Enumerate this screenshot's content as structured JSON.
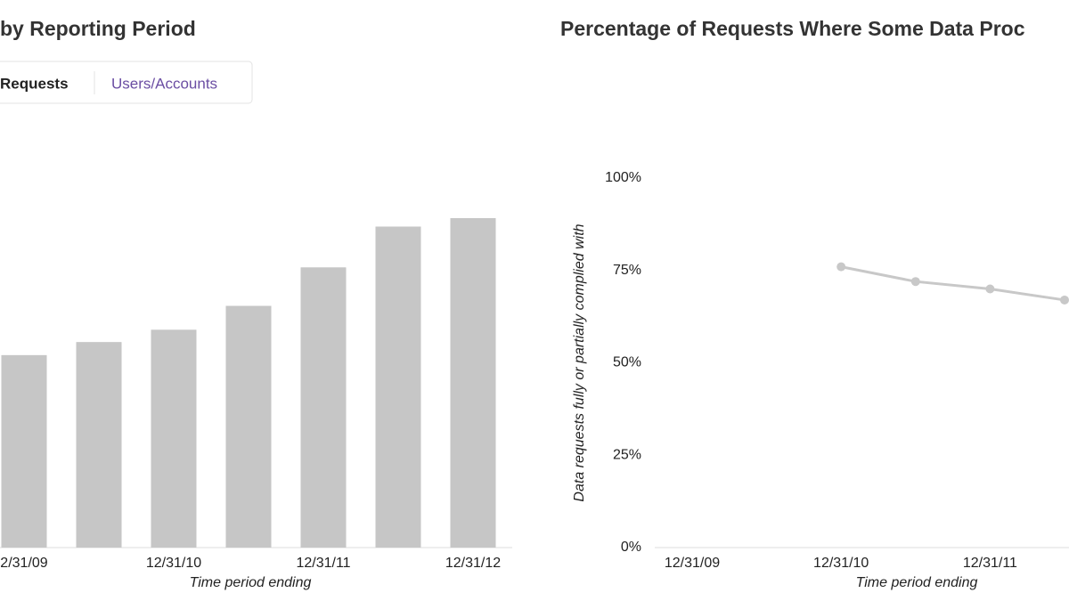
{
  "tabs": [
    "Requests",
    "Users/Accounts"
  ],
  "chart_data": [
    {
      "type": "bar",
      "title": "by Reporting Period",
      "categories": [
        "2/31/09",
        null,
        "12/31/10",
        null,
        "12/31/11",
        null,
        "12/31/12"
      ],
      "values": [
        12500,
        13350,
        14150,
        15700,
        18200,
        20850,
        21400
      ],
      "color": "#c6c6c6",
      "ylim": [
        0,
        24000
      ],
      "xlabel": "Time period ending"
    },
    {
      "type": "line",
      "title": "Percentage of Requests Where Some Data Proc",
      "categories": [
        "12/31/09",
        null,
        "12/31/10",
        null,
        "12/31/11",
        null
      ],
      "values": [
        null,
        null,
        76,
        72,
        70,
        67
      ],
      "color": "#c8c8c8",
      "ylim": [
        0,
        100
      ],
      "yticks": [
        {
          "value": 0,
          "label": "0%"
        },
        {
          "value": 25,
          "label": "25%"
        },
        {
          "value": 50,
          "label": "50%"
        },
        {
          "value": 75,
          "label": "75%"
        },
        {
          "value": 100,
          "label": "100%"
        }
      ],
      "xlabel": "Time period ending",
      "ylabel": "Data requests fully or partially complied with"
    }
  ]
}
